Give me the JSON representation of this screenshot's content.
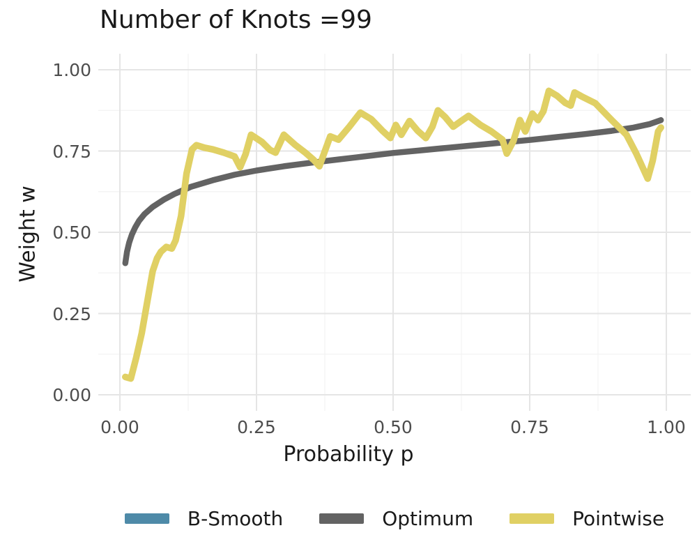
{
  "title": "Number of Knots =99",
  "axes": {
    "x": {
      "label": "Probability p",
      "tick_values": [
        0,
        0.25,
        0.5,
        0.75,
        1
      ],
      "tick_labels": [
        "0.00",
        "0.25",
        "0.50",
        "0.75",
        "1.00"
      ],
      "minor_tick_values": [
        0.125,
        0.375,
        0.625,
        0.875
      ]
    },
    "y": {
      "label": "Weight w",
      "tick_values": [
        0,
        0.25,
        0.5,
        0.75,
        1
      ],
      "tick_labels": [
        "0.00",
        "0.25",
        "0.50",
        "0.75",
        "1.00"
      ],
      "minor_tick_values": [
        0.125,
        0.375,
        0.625,
        0.875
      ]
    }
  },
  "legend": {
    "items": [
      {
        "key": "b-smooth",
        "label": "B-Smooth",
        "color": "#4e8aa8"
      },
      {
        "key": "optimum",
        "label": "Optimum",
        "color": "#636363"
      },
      {
        "key": "pointwise",
        "label": "Pointwise",
        "color": "#e0d064"
      }
    ]
  },
  "style": {
    "background": "#ffffff",
    "grid_major_color": "#e5e5e5",
    "grid_minor_color": "#f2f2f2",
    "tick_label_color": "#4d4d4d",
    "title_color": "#1a1a1a"
  },
  "chart_data": {
    "type": "line",
    "title": "Number of Knots =99",
    "xlabel": "Probability p",
    "ylabel": "Weight w",
    "xlim": [
      0,
      1
    ],
    "ylim": [
      0,
      1
    ],
    "grid": "major+minor",
    "legend_position": "bottom",
    "series": [
      {
        "name": "B-Smooth",
        "color": "#4e8aa8",
        "line_width": 8,
        "note": "legend entry visible but curve not visibly distinct in plot (coincides with / hidden behind Optimum curve)",
        "x": [],
        "y": []
      },
      {
        "name": "Optimum",
        "color": "#636363",
        "line_width": 8.5,
        "x": [
          0.01,
          0.013,
          0.017,
          0.022,
          0.028,
          0.035,
          0.045,
          0.06,
          0.08,
          0.1,
          0.13,
          0.17,
          0.21,
          0.25,
          0.3,
          0.35,
          0.4,
          0.45,
          0.5,
          0.55,
          0.6,
          0.65,
          0.7,
          0.75,
          0.8,
          0.85,
          0.9,
          0.94,
          0.97,
          0.99
        ],
        "y": [
          0.405,
          0.44,
          0.468,
          0.493,
          0.515,
          0.535,
          0.556,
          0.578,
          0.6,
          0.618,
          0.64,
          0.66,
          0.677,
          0.69,
          0.703,
          0.714,
          0.724,
          0.734,
          0.744,
          0.752,
          0.76,
          0.768,
          0.776,
          0.784,
          0.793,
          0.802,
          0.812,
          0.822,
          0.833,
          0.845
        ]
      },
      {
        "name": "Pointwise",
        "color": "#e0d064",
        "line_width": 9.5,
        "x": [
          0.01,
          0.02,
          0.03,
          0.04,
          0.05,
          0.06,
          0.068,
          0.075,
          0.085,
          0.095,
          0.102,
          0.112,
          0.122,
          0.132,
          0.14,
          0.155,
          0.17,
          0.19,
          0.21,
          0.22,
          0.23,
          0.24,
          0.26,
          0.275,
          0.285,
          0.3,
          0.32,
          0.34,
          0.355,
          0.365,
          0.385,
          0.4,
          0.42,
          0.44,
          0.46,
          0.48,
          0.495,
          0.505,
          0.515,
          0.53,
          0.545,
          0.56,
          0.572,
          0.582,
          0.595,
          0.61,
          0.625,
          0.638,
          0.66,
          0.68,
          0.7,
          0.708,
          0.72,
          0.732,
          0.742,
          0.755,
          0.765,
          0.775,
          0.785,
          0.8,
          0.815,
          0.825,
          0.832,
          0.845,
          0.87,
          0.9,
          0.927,
          0.945,
          0.966,
          0.975,
          0.985,
          0.99
        ],
        "y": [
          0.055,
          0.05,
          0.115,
          0.19,
          0.285,
          0.38,
          0.42,
          0.44,
          0.455,
          0.45,
          0.475,
          0.55,
          0.68,
          0.755,
          0.768,
          0.76,
          0.755,
          0.745,
          0.733,
          0.7,
          0.74,
          0.8,
          0.778,
          0.753,
          0.745,
          0.8,
          0.77,
          0.744,
          0.722,
          0.703,
          0.795,
          0.785,
          0.825,
          0.868,
          0.848,
          0.813,
          0.79,
          0.83,
          0.8,
          0.842,
          0.812,
          0.79,
          0.825,
          0.875,
          0.855,
          0.825,
          0.843,
          0.858,
          0.83,
          0.81,
          0.785,
          0.742,
          0.78,
          0.845,
          0.81,
          0.865,
          0.845,
          0.872,
          0.935,
          0.92,
          0.898,
          0.89,
          0.93,
          0.918,
          0.897,
          0.845,
          0.8,
          0.742,
          0.665,
          0.72,
          0.81,
          0.822
        ]
      }
    ]
  }
}
